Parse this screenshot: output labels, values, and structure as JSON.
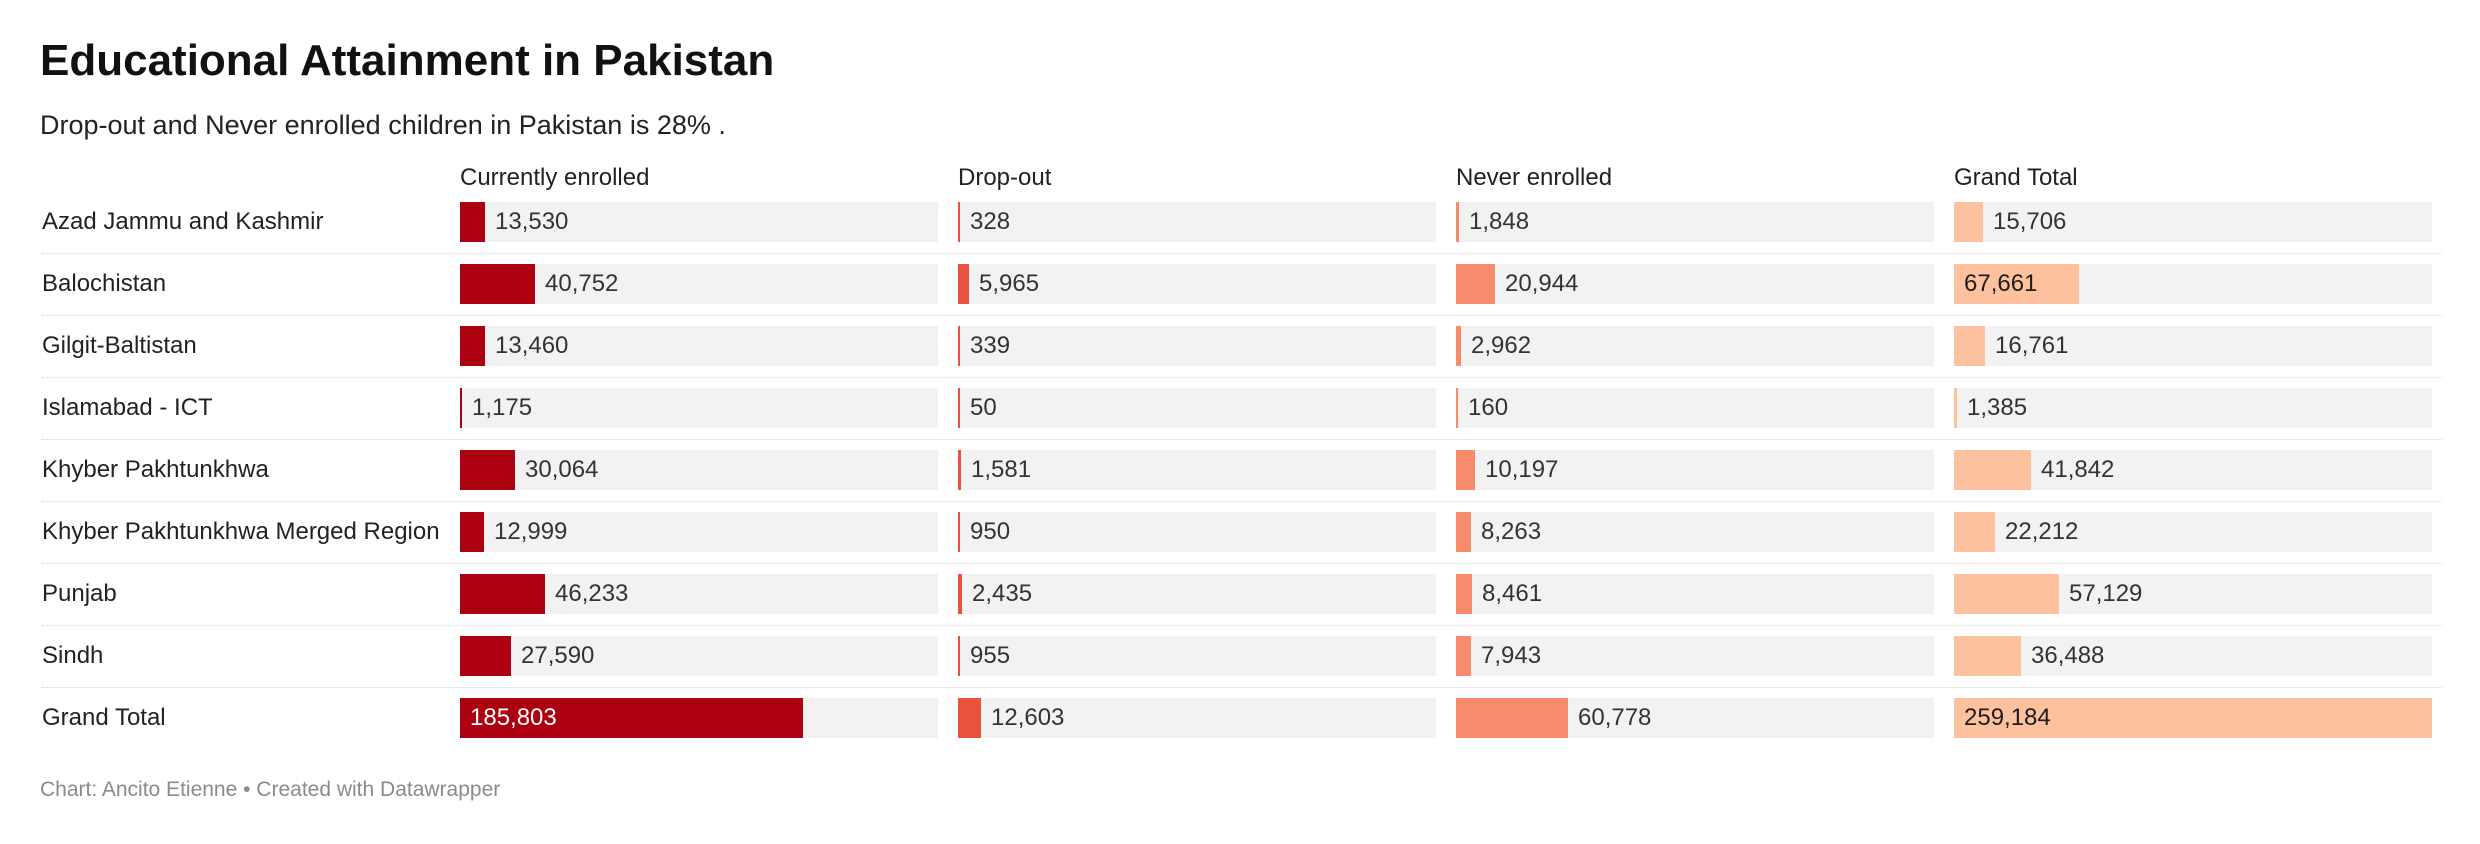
{
  "title": "Educational Attainment in Pakistan",
  "subtitle": "Drop-out and Never enrolled children in Pakistan is 28% .",
  "footer": "Chart: Ancito Etienne • Created with Datawrapper",
  "colors": {
    "currently_enrolled": "#ad0010",
    "drop_out": "#e8523e",
    "never_enrolled": "#f78c6c",
    "grand_total": "#fdc19d",
    "track": "#f2f2f2"
  },
  "chart_data": {
    "type": "table",
    "columns": [
      "Currently enrolled",
      "Drop-out",
      "Never enrolled",
      "Grand Total"
    ],
    "rows": [
      {
        "label": "Azad Jammu and Kashmir",
        "values": [
          13530,
          328,
          1848,
          15706
        ],
        "display": [
          "13,530",
          "328",
          "1,848",
          "15,706"
        ]
      },
      {
        "label": "Balochistan",
        "values": [
          40752,
          5965,
          20944,
          67661
        ],
        "display": [
          "40,752",
          "5,965",
          "20,944",
          "67,661"
        ]
      },
      {
        "label": "Gilgit-Baltistan",
        "values": [
          13460,
          339,
          2962,
          16761
        ],
        "display": [
          "13,460",
          "339",
          "2,962",
          "16,761"
        ]
      },
      {
        "label": "Islamabad - ICT",
        "values": [
          1175,
          50,
          160,
          1385
        ],
        "display": [
          "1,175",
          "50",
          "160",
          "1,385"
        ]
      },
      {
        "label": "Khyber Pakhtunkhwa",
        "values": [
          30064,
          1581,
          10197,
          41842
        ],
        "display": [
          "30,064",
          "1,581",
          "10,197",
          "41,842"
        ]
      },
      {
        "label": "Khyber Pakhtunkhwa Merged Region",
        "values": [
          12999,
          950,
          8263,
          22212
        ],
        "display": [
          "12,999",
          "950",
          "8,263",
          "22,212"
        ]
      },
      {
        "label": "Punjab",
        "values": [
          46233,
          2435,
          8461,
          57129
        ],
        "display": [
          "46,233",
          "2,435",
          "8,461",
          "57,129"
        ]
      },
      {
        "label": "Sindh",
        "values": [
          27590,
          955,
          7943,
          36488
        ],
        "display": [
          "27,590",
          "955",
          "7,943",
          "36,488"
        ]
      },
      {
        "label": "Grand Total",
        "values": [
          185803,
          12603,
          60778,
          259184
        ],
        "display": [
          "185,803",
          "12,603",
          "60,778",
          "259,184"
        ]
      }
    ],
    "column_max": [
      259184,
      259184,
      259184,
      259184
    ]
  }
}
